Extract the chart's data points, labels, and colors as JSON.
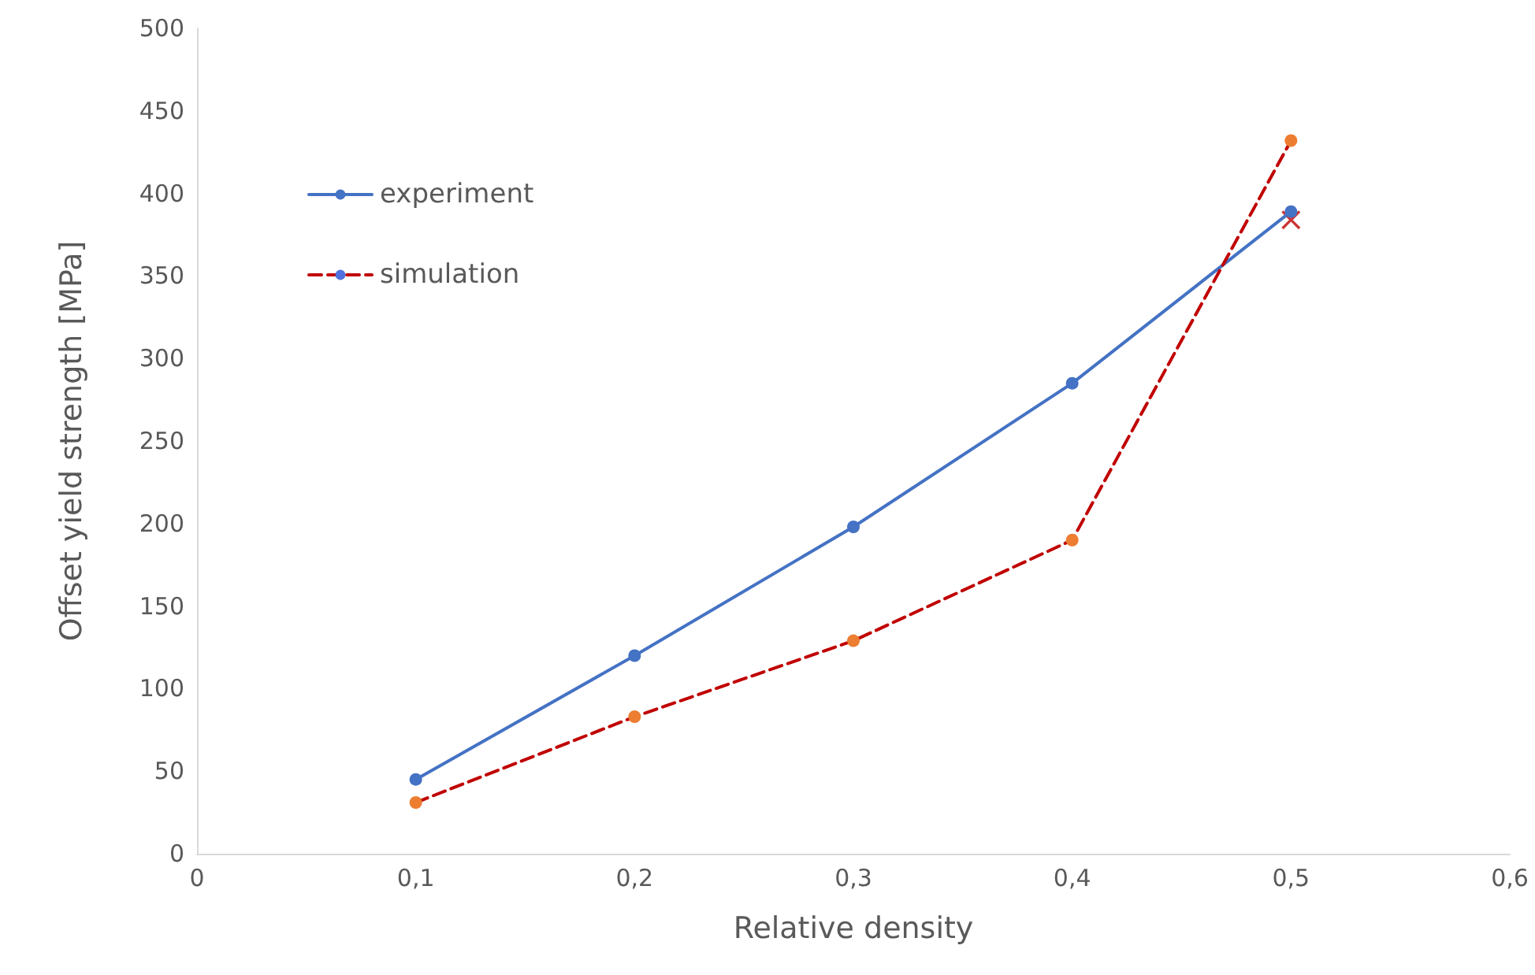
{
  "chart_data": {
    "type": "line",
    "xlabel": "Relative density",
    "ylabel": "Offset yield strength [MPa]",
    "x": [
      0.1,
      0.2,
      0.3,
      0.4,
      0.5
    ],
    "series": [
      {
        "name": "experiment",
        "color": "#4472c4",
        "values": [
          45,
          120,
          198,
          285,
          389
        ],
        "line_style": "solid"
      },
      {
        "name": "simulation",
        "color": "#c00000",
        "colors": [
          "#ed7d31",
          "#ed7d31",
          "#ed7d31",
          "#ed7d31",
          "#ed7d31"
        ],
        "values": [
          31,
          83,
          129,
          190,
          432
        ],
        "line_style": "dashed"
      },
      {
        "type": "scatter",
        "marker": "cross",
        "color": "#c00000",
        "x": [
          0.5
        ],
        "values": [
          384
        ]
      }
    ],
    "xlim": [
      0,
      0.6
    ],
    "xticks": [
      {
        "value": 0,
        "label": "0"
      },
      {
        "value": 0.1,
        "label": "0,1"
      },
      {
        "value": 0.2,
        "label": "0,2"
      },
      {
        "value": 0.3,
        "label": "0,3"
      },
      {
        "value": 0.4,
        "label": "0,4"
      },
      {
        "value": 0.5,
        "label": "0,5"
      },
      {
        "value": 0.6,
        "label": "0,6"
      }
    ],
    "ylim": [
      0,
      500
    ],
    "yticks": [
      0,
      50,
      100,
      150,
      200,
      250,
      300,
      350,
      400,
      450,
      500
    ],
    "grid": false,
    "legend": "top left",
    "marker": "circle"
  }
}
